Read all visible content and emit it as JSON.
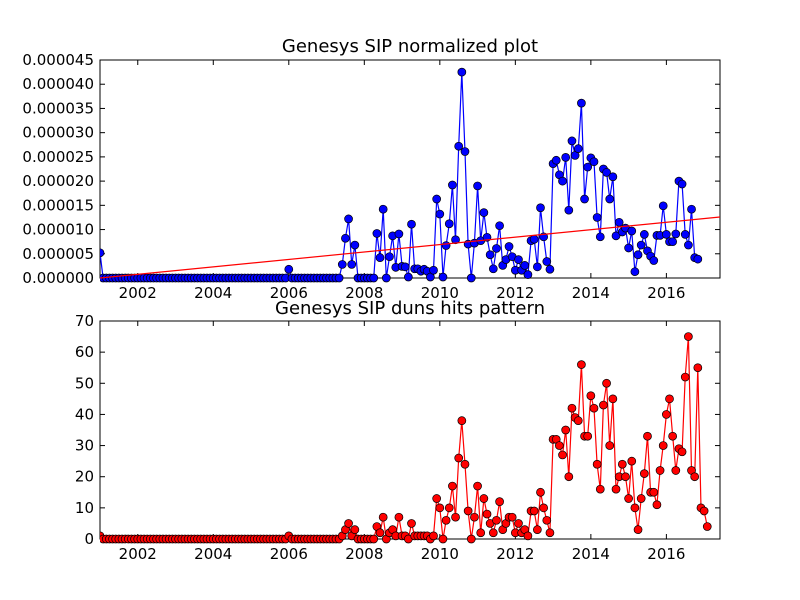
{
  "chart_data": [
    {
      "type": "line",
      "title": "Genesys SIP normalized plot",
      "xlim": [
        2001.0,
        2017.42
      ],
      "ylim": [
        0,
        4.5e-05
      ],
      "xticks": [
        2002,
        2004,
        2006,
        2008,
        2010,
        2012,
        2014,
        2016
      ],
      "xtick_labels": [
        "2002",
        "2004",
        "2006",
        "2008",
        "2010",
        "2012",
        "2014",
        "2016"
      ],
      "yticks": [
        0,
        5e-06,
        1e-05,
        1.5e-05,
        2e-05,
        2.5e-05,
        3e-05,
        3.5e-05,
        4e-05,
        4.5e-05
      ],
      "ytick_labels": [
        "0.000000",
        "0.000005",
        "0.000010",
        "0.000015",
        "0.000020",
        "0.000025",
        "0.000030",
        "0.000035",
        "0.000040",
        "0.000045"
      ],
      "grid": false,
      "series": [
        {
          "color": "#0000ff",
          "marker": "circle",
          "x_start": 2001.0,
          "x_step": 0.08333,
          "values": [
            5.2e-06,
            0,
            0,
            0,
            0,
            0,
            0,
            0,
            0,
            0,
            0,
            0,
            0,
            0,
            0,
            0,
            0,
            0,
            0,
            0,
            0,
            0,
            0,
            0,
            0,
            0,
            0,
            0,
            0,
            0,
            0,
            0,
            0,
            0,
            0,
            0,
            0,
            0,
            0,
            0,
            0,
            0,
            0,
            0,
            0,
            0,
            0,
            0,
            0,
            0,
            0,
            0,
            0,
            0,
            0,
            0,
            0,
            0,
            0,
            0,
            1.8e-06,
            0,
            0,
            0,
            0,
            0,
            0,
            0,
            0,
            0,
            0,
            0,
            0,
            0,
            0,
            0,
            0,
            2.8e-06,
            8.2e-06,
            1.22e-05,
            2.8e-06,
            6.8e-06,
            0,
            0,
            0,
            0,
            0,
            0,
            9.2e-06,
            4.2e-06,
            1.42e-05,
            0,
            4.4e-06,
            8.7e-06,
            2.2e-06,
            9.1e-06,
            2.4e-06,
            2.3e-06,
            2e-07,
            1.11e-05,
            1.9e-06,
            1.9e-06,
            1.4e-06,
            1.8e-06,
            1.4e-06,
            2e-07,
            1.6e-06,
            1.63e-05,
            1.32e-05,
            2e-07,
            6.7e-06,
            1.12e-05,
            1.92e-05,
            7.9e-06,
            2.72e-05,
            4.25e-05,
            2.61e-05,
            7e-06,
            0,
            7.2e-06,
            1.9e-05,
            7.7e-06,
            1.35e-05,
            8.4e-06,
            4.8e-06,
            1.9e-06,
            6.1e-06,
            1.08e-05,
            2.6e-06,
            3.8e-06,
            6.5e-06,
            4.4e-06,
            1.6e-06,
            3.8e-06,
            1.6e-06,
            2.6e-06,
            7e-07,
            7.7e-06,
            8e-06,
            2.3e-06,
            1.45e-05,
            8.5e-06,
            3.4e-06,
            1.8e-06,
            2.36e-05,
            2.43e-05,
            2.13e-05,
            2e-05,
            2.49e-05,
            1.4e-05,
            2.83e-05,
            2.53e-05,
            2.67e-05,
            3.61e-05,
            1.63e-05,
            2.29e-05,
            2.48e-05,
            2.4e-05,
            1.25e-05,
            8.5e-06,
            2.25e-05,
            2.18e-05,
            1.63e-05,
            2.09e-05,
            8.7e-06,
            1.15e-05,
            9.5e-06,
            1.03e-05,
            6.2e-06,
            9.7e-06,
            1.3e-06,
            4.8e-06,
            6.8e-06,
            9e-06,
            5.6e-06,
            4.5e-06,
            3.6e-06,
            8.8e-06,
            8.8e-06,
            1.49e-05,
            9e-06,
            7.5e-06,
            7.5e-06,
            9.1e-06,
            2e-05,
            1.94e-05,
            9e-06,
            6.8e-06,
            1.42e-05,
            4.2e-06,
            3.9e-06
          ]
        },
        {
          "color": "#ff0000",
          "marker": "none",
          "x": [
            2001.0,
            2017.42
          ],
          "values": [
            0,
            1.26e-05
          ]
        }
      ]
    },
    {
      "type": "line",
      "title": "Genesys SIP duns hits pattern",
      "xlim": [
        2001.0,
        2017.42
      ],
      "ylim": [
        0,
        70
      ],
      "xticks": [
        2002,
        2004,
        2006,
        2008,
        2010,
        2012,
        2014,
        2016
      ],
      "xtick_labels": [
        "2002",
        "2004",
        "2006",
        "2008",
        "2010",
        "2012",
        "2014",
        "2016"
      ],
      "yticks": [
        0,
        10,
        20,
        30,
        40,
        50,
        60,
        70
      ],
      "ytick_labels": [
        "0",
        "10",
        "20",
        "30",
        "40",
        "50",
        "60",
        "70"
      ],
      "grid": false,
      "series": [
        {
          "color": "#ff0000",
          "marker": "circle",
          "x_start": 2001.0,
          "x_step": 0.08333,
          "values": [
            1,
            0,
            0,
            0,
            0,
            0,
            0,
            0,
            0,
            0,
            0,
            0,
            0,
            0,
            0,
            0,
            0,
            0,
            0,
            0,
            0,
            0,
            0,
            0,
            0,
            0,
            0,
            0,
            0,
            0,
            0,
            0,
            0,
            0,
            0,
            0,
            0,
            0,
            0,
            0,
            0,
            0,
            0,
            0,
            0,
            0,
            0,
            0,
            0,
            0,
            0,
            0,
            0,
            0,
            0,
            0,
            0,
            0,
            0,
            0,
            1,
            0,
            0,
            0,
            0,
            0,
            0,
            0,
            0,
            0,
            0,
            0,
            0,
            0,
            0,
            0,
            0,
            1,
            3,
            5,
            1,
            3,
            0,
            0,
            0,
            0,
            0,
            0,
            4,
            2,
            7,
            0,
            2,
            3,
            1,
            7,
            1,
            1,
            0,
            5,
            1,
            1,
            1,
            1,
            1,
            0,
            1,
            13,
            10,
            0,
            6,
            10,
            17,
            7,
            26,
            38,
            24,
            9,
            0,
            7,
            17,
            2,
            13,
            8,
            5,
            2,
            6,
            12,
            3,
            5,
            7,
            7,
            2,
            5,
            2,
            3,
            1,
            9,
            9,
            3,
            15,
            10,
            6,
            2,
            32,
            32,
            30,
            27,
            35,
            20,
            42,
            39,
            38,
            56,
            33,
            33,
            46,
            42,
            24,
            16,
            43,
            50,
            30,
            45,
            16,
            20,
            24,
            20,
            13,
            25,
            10,
            3,
            13,
            21,
            33,
            15,
            15,
            11,
            22,
            30,
            40,
            45,
            33,
            22,
            29,
            28,
            52,
            65,
            22,
            20,
            55,
            10,
            9,
            4
          ]
        }
      ]
    }
  ]
}
